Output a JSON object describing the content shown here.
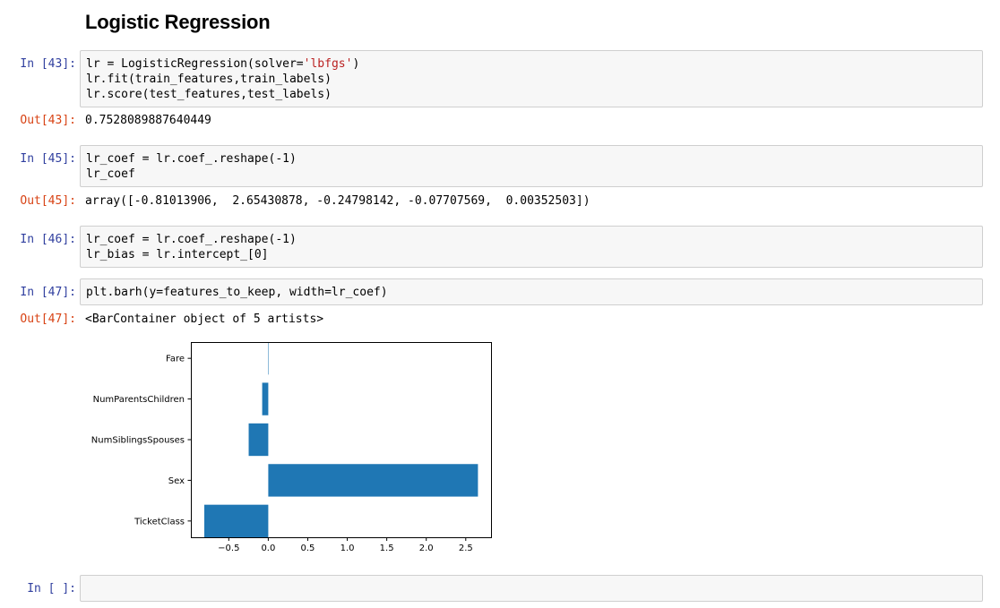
{
  "heading": "Logistic Regression",
  "cells": {
    "c43": {
      "in_prompt": "In [43]:",
      "out_prompt": "Out[43]:",
      "lines": [
        {
          "pre": "lr = LogisticRegression(solver=",
          "str": "'lbfgs'",
          "post": ")"
        },
        {
          "pre": "lr.fit(train_features,train_labels)",
          "str": "",
          "post": ""
        },
        {
          "pre": "lr.score(test_features,test_labels)",
          "str": "",
          "post": ""
        }
      ],
      "output": "0.7528089887640449"
    },
    "c45": {
      "in_prompt": "In [45]:",
      "out_prompt": "Out[45]:",
      "lines": [
        "lr_coef = lr.coef_.reshape(-1)",
        "lr_coef"
      ],
      "output": "array([-0.81013906,  2.65430878, -0.24798142, -0.07707569,  0.00352503])"
    },
    "c46": {
      "in_prompt": "In [46]:",
      "lines": [
        "lr_coef = lr.coef_.reshape(-1)",
        "lr_bias = lr.intercept_[0]"
      ]
    },
    "c47": {
      "in_prompt": "In [47]:",
      "out_prompt": "Out[47]:",
      "lines": [
        "plt.barh(y=features_to_keep, width=lr_coef)"
      ],
      "output": "<BarContainer object of 5 artists>"
    },
    "empty": {
      "in_prompt": "In [ ]:"
    }
  },
  "chart_data": {
    "type": "bar",
    "orientation": "horizontal",
    "categories": [
      "TicketClass",
      "Sex",
      "NumSiblingsSpouses",
      "NumParentsChildren",
      "Fare"
    ],
    "values": [
      -0.81013906,
      2.65430878,
      -0.24798142,
      -0.07707569,
      0.00352503
    ],
    "xlim": [
      -0.98,
      2.82
    ],
    "xticks": [
      -0.5,
      0.0,
      0.5,
      1.0,
      1.5,
      2.0,
      2.5
    ],
    "xtick_labels": [
      "−0.5",
      "0.0",
      "0.5",
      "1.0",
      "1.5",
      "2.0",
      "2.5"
    ],
    "bar_color": "#1f77b4",
    "grid": false
  }
}
